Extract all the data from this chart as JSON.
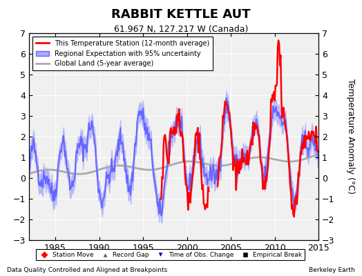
{
  "title": "RABBIT KETTLE AUT",
  "subtitle": "61.967 N, 127.217 W (Canada)",
  "ylabel": "Temperature Anomaly (°C)",
  "xlabel_left": "Data Quality Controlled and Aligned at Breakpoints",
  "xlabel_right": "Berkeley Earth",
  "xlim": [
    1982,
    2015
  ],
  "ylim": [
    -3,
    7
  ],
  "yticks": [
    -3,
    -2,
    -1,
    0,
    1,
    2,
    3,
    4,
    5,
    6,
    7
  ],
  "xticks": [
    1985,
    1990,
    1995,
    2000,
    2005,
    2010,
    2015
  ],
  "regional_color": "#6666ff",
  "regional_fill_color": "#aaaaff",
  "station_color": "#ff0000",
  "global_color": "#aaaaaa",
  "background_color": "#f0f0f0",
  "legend_items": [
    {
      "label": "This Temperature Station (12-month average)",
      "color": "#ff0000",
      "lw": 2
    },
    {
      "label": "Regional Expectation with 95% uncertainty",
      "color": "#6666ff",
      "lw": 2
    },
    {
      "label": "Global Land (5-year average)",
      "color": "#aaaaaa",
      "lw": 2
    }
  ],
  "bottom_legend": [
    {
      "label": "Station Move",
      "color": "#ff0000",
      "marker": "D"
    },
    {
      "label": "Record Gap",
      "color": "#228B22",
      "marker": "^"
    },
    {
      "label": "Time of Obs. Change",
      "color": "#0000cc",
      "marker": "v"
    },
    {
      "label": "Empirical Break",
      "color": "#000000",
      "marker": "s"
    }
  ],
  "seed": 42
}
